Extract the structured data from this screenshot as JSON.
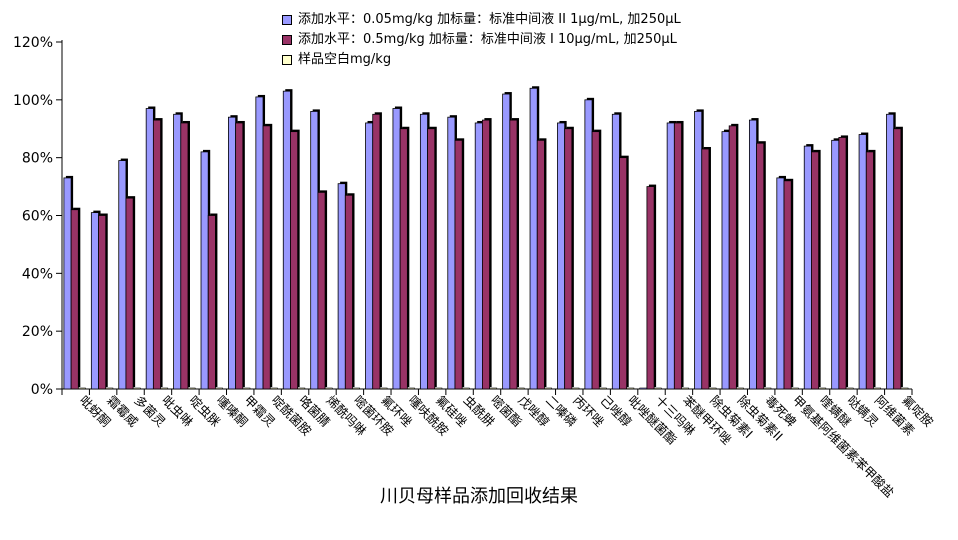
{
  "chart_data": {
    "type": "bar",
    "title": "川贝母样品添加回收结果",
    "ylim": [
      0,
      120
    ],
    "yticks": [
      "0%",
      "20%",
      "40%",
      "60%",
      "80%",
      "100%",
      "120%"
    ],
    "grid": false,
    "legend_position": "top",
    "categories": [
      "吡蚜酮",
      "霜霉威",
      "多菌灵",
      "吡虫啉",
      "啶虫脒",
      "噻嗪酮",
      "甲霜灵",
      "啶酰菌胺",
      "咯菌腈",
      "烯酰吗啉",
      "嘧菌环胺",
      "氟环唑",
      "噻呋酰胺",
      "氟硅唑",
      "虫酰肼",
      "嘧菌酯",
      "戊唑醇",
      "二嗪磷",
      "丙环唑",
      "己唑醇",
      "吡唑醚菌酯",
      "十三吗啉",
      "苯醚甲环唑",
      "除虫菊素I",
      "除虫菊素II",
      "毒死蜱",
      "甲氨基阿维菌素苯甲酸盐",
      "喹螨醚",
      "哒螨灵",
      "阿维菌素",
      "氟啶胺"
    ],
    "series": [
      {
        "name": "添加水平：0.05mg/kg 加标量：标准中间液 II 1μg/mL, 加250μL",
        "color": "#9999ff",
        "values": [
          73,
          61,
          79,
          97,
          95,
          82,
          94,
          101,
          103,
          96,
          71,
          92,
          97,
          95,
          94,
          92,
          102,
          104,
          92,
          100,
          95,
          0,
          92,
          96,
          89,
          93,
          73,
          84,
          86,
          88,
          95
        ]
      },
      {
        "name": "添加水平：0.5mg/kg 加标量：标准中间液 I 10μg/mL, 加250μL",
        "color": "#993366",
        "values": [
          62,
          60,
          66,
          93,
          92,
          60,
          92,
          91,
          89,
          68,
          67,
          95,
          90,
          90,
          86,
          93,
          93,
          86,
          90,
          89,
          80,
          70,
          92,
          83,
          91,
          85,
          72,
          82,
          87,
          82,
          90
        ]
      },
      {
        "name": "样品空白mg/kg",
        "color": "#ffffcc",
        "values": [
          0,
          0,
          0,
          0,
          0,
          0,
          0,
          0,
          0,
          0,
          0,
          0,
          0,
          0,
          0,
          0,
          0,
          0,
          0,
          0,
          0,
          0,
          0,
          0,
          0,
          0,
          0,
          0,
          0,
          0,
          0
        ]
      }
    ]
  }
}
